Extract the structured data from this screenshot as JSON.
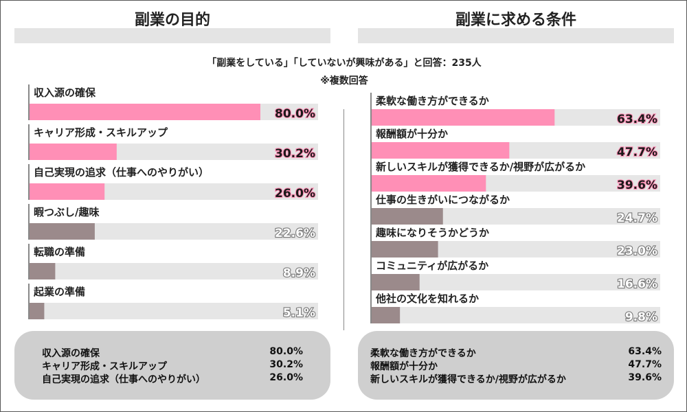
{
  "subtitle_line1": "「副業をしている」「していないが興味がある」と回答：235人",
  "subtitle_line2": "※複数回答",
  "colors": {
    "highlight": "#ff8fb6",
    "muted": "#9b8a8b",
    "track": "#e6e6e6",
    "panel_bg": "#cfcfcf"
  },
  "chart_data": [
    {
      "type": "bar",
      "orientation": "horizontal",
      "title": "副業の目的",
      "xlim": [
        0,
        100
      ],
      "unit": "%",
      "categories": [
        "収入源の確保",
        "キャリア形成・スキルアップ",
        "自己実現の追求（仕事へのやりがい）",
        "暇つぶし/趣味",
        "転職の準備",
        "起業の準備"
      ],
      "values": [
        80.0,
        30.2,
        26.0,
        22.6,
        8.9,
        5.1
      ],
      "value_labels": [
        "80.0%",
        "30.2%",
        "26.0%",
        "22.6%",
        "8.9%",
        "5.1%"
      ],
      "highlighted": [
        true,
        true,
        true,
        false,
        false,
        false
      ]
    },
    {
      "type": "bar",
      "orientation": "horizontal",
      "title": "副業に求める条件",
      "xlim": [
        0,
        100
      ],
      "unit": "%",
      "categories": [
        "柔軟な働き方ができるか",
        "報酬額が十分か",
        "新しいスキルが獲得できるか/視野が広がるか",
        "仕事の生きがいにつながるか",
        "趣味になりそうかどうか",
        "コミュニティが広がるか",
        "他社の文化を知れるか"
      ],
      "values": [
        63.4,
        47.7,
        39.6,
        24.7,
        23.0,
        16.6,
        9.8
      ],
      "value_labels": [
        "63.4%",
        "47.7%",
        "39.6%",
        "24.7%",
        "23.0%",
        "16.6%",
        "9.8%"
      ],
      "highlighted": [
        true,
        true,
        true,
        false,
        false,
        false,
        false
      ]
    }
  ],
  "summary_left": [
    {
      "label": "収入源の確保",
      "value": "80.0%"
    },
    {
      "label": "キャリア形成・スキルアップ",
      "value": "30.2%"
    },
    {
      "label": "自己実現の追求（仕事へのやりがい）",
      "value": "26.0%"
    }
  ],
  "summary_right": [
    {
      "label": "柔軟な働き方ができるか",
      "value": "63.4%"
    },
    {
      "label": "報酬額が十分か",
      "value": "47.7%"
    },
    {
      "label": "新しいスキルが獲得できるか/視野が広がるか",
      "value": "39.6%"
    }
  ]
}
